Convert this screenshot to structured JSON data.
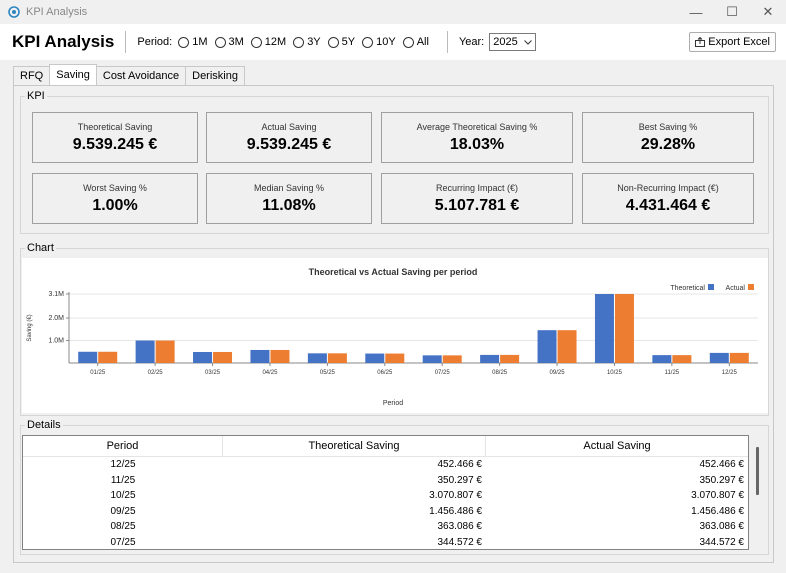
{
  "window": {
    "title": "KPI Analysis",
    "controls": [
      "—",
      "☐",
      "✕"
    ]
  },
  "header": {
    "title": "KPI Analysis",
    "period_label": "Period:",
    "periods": [
      "1M",
      "3M",
      "12M",
      "3Y",
      "5Y",
      "10Y",
      "All"
    ],
    "year_label": "Year:",
    "year_value": "2025",
    "export_label": "Export Excel"
  },
  "tabs": [
    "RFQ",
    "Saving",
    "Cost Avoidance",
    "Derisking"
  ],
  "active_tab": "Saving",
  "kpi": {
    "title": "KPI",
    "cards": [
      {
        "label": "Theoretical Saving",
        "value": "9.539.245 €"
      },
      {
        "label": "Actual Saving",
        "value": "9.539.245 €"
      },
      {
        "label": "Average Theoretical Saving %",
        "value": "18.03%"
      },
      {
        "label": "Best Saving %",
        "value": "29.28%"
      },
      {
        "label": "Worst Saving %",
        "value": "1.00%"
      },
      {
        "label": "Median Saving %",
        "value": "11.08%"
      },
      {
        "label": "Recurring Impact (€)",
        "value": "5.107.781 €"
      },
      {
        "label": "Non-Recurring Impact (€)",
        "value": "4.431.464 €"
      }
    ]
  },
  "chart_section": {
    "title": "Chart"
  },
  "chart_data": {
    "type": "bar",
    "title": "Theoretical vs Actual Saving per period",
    "xlabel": "Period",
    "ylabel": "Saving (€)",
    "categories": [
      "01/25",
      "02/25",
      "03/25",
      "04/25",
      "05/25",
      "06/25",
      "07/25",
      "08/25",
      "09/25",
      "10/25",
      "11/25",
      "12/25"
    ],
    "series": [
      {
        "name": "Theoretical",
        "color": "#4472c4",
        "values": [
          0.5,
          1.0,
          0.49,
          0.58,
          0.43,
          0.42,
          0.34,
          0.36,
          1.46,
          3.07,
          0.35,
          0.45
        ]
      },
      {
        "name": "Actual",
        "color": "#ed7d31",
        "values": [
          0.5,
          1.0,
          0.49,
          0.58,
          0.43,
          0.42,
          0.34,
          0.36,
          1.46,
          3.07,
          0.35,
          0.45
        ]
      }
    ],
    "yticks": [
      "1.0M",
      "2.0M",
      "3.1M"
    ],
    "ytick_values": [
      1.0,
      2.0,
      3.07
    ],
    "ylim": [
      0,
      3.07
    ],
    "legend_position": "top-right"
  },
  "details": {
    "title": "Details",
    "columns": [
      "Period",
      "Theoretical Saving",
      "Actual Saving"
    ],
    "rows": [
      [
        "12/25",
        "452.466 €",
        "452.466 €"
      ],
      [
        "11/25",
        "350.297 €",
        "350.297 €"
      ],
      [
        "10/25",
        "3.070.807 €",
        "3.070.807 €"
      ],
      [
        "09/25",
        "1.456.486 €",
        "1.456.486 €"
      ],
      [
        "08/25",
        "363.086 €",
        "363.086 €"
      ],
      [
        "07/25",
        "344.572 €",
        "344.572 €"
      ]
    ]
  }
}
